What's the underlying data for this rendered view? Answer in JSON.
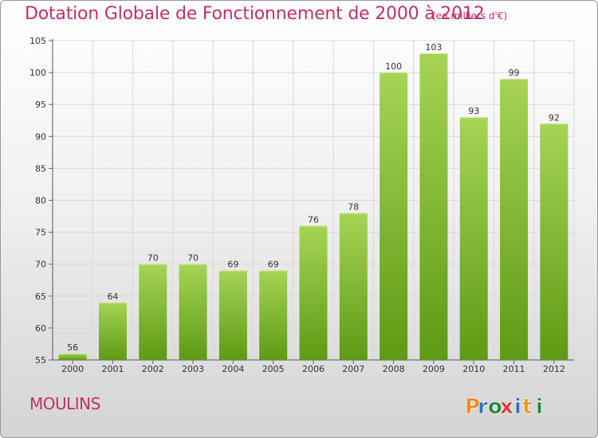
{
  "header": {
    "title": "Dotation Globale de Fonctionnement de 2000 à 2012",
    "subtitle": "(en milliers d'€)"
  },
  "footer": {
    "city": "MOULINS",
    "logo_text": "Proxiti"
  },
  "colors": {
    "title": "#c0306a",
    "bar_top": "#a6d455",
    "bar_bottom": "#5e9a14",
    "grid": "#d8d8d8",
    "logo_letters": [
      "#f08a18",
      "#2d6fc0",
      "#1a8a3a",
      "#e2332e",
      "#2d6fc0",
      "#e69a1a",
      "#1a8a3a"
    ]
  },
  "chart_data": {
    "type": "bar",
    "categories": [
      "2000",
      "2001",
      "2002",
      "2003",
      "2004",
      "2005",
      "2006",
      "2007",
      "2008",
      "2009",
      "2010",
      "2011",
      "2012"
    ],
    "values": [
      56,
      64,
      70,
      70,
      69,
      69,
      76,
      78,
      100,
      103,
      93,
      99,
      92
    ],
    "title": "Dotation Globale de Fonctionnement de 2000 à 2012",
    "ylim": [
      55,
      105
    ],
    "yticks": [
      55,
      60,
      65,
      70,
      75,
      80,
      85,
      90,
      95,
      100,
      105
    ],
    "grid": true,
    "legend": "none"
  }
}
